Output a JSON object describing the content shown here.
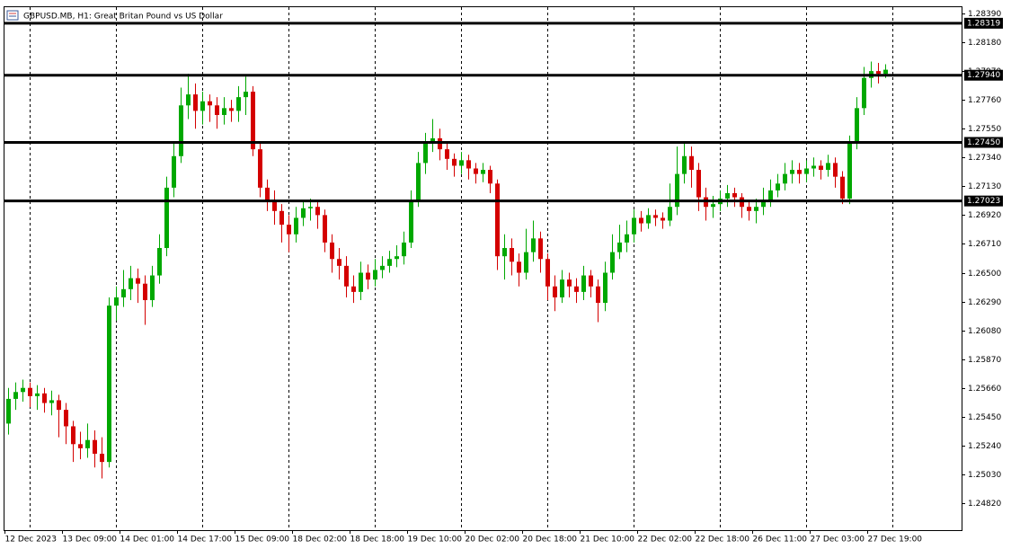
{
  "chart_data": {
    "type": "candlestick",
    "title": "GBPUSD.MB, H1:  Great Britan Pound vs US Dollar",
    "up_color": "#00a800",
    "down_color": "#d40000",
    "level_color": "#000000",
    "grid": true,
    "open": [
      1.254,
      1.2558,
      1.2563,
      1.2566,
      1.256,
      1.2562,
      1.2555,
      1.2557,
      1.255,
      1.2538,
      1.2525,
      1.2522,
      1.2528,
      1.2518,
      1.2512,
      1.2626,
      1.2632,
      1.2638,
      1.2646,
      1.2642,
      1.263,
      1.2648,
      1.2668,
      1.2712,
      1.2735,
      1.2772,
      1.278,
      1.2768,
      1.2775,
      1.2772,
      1.2765,
      1.277,
      1.2768,
      1.2778,
      1.2782,
      1.274,
      1.2712,
      1.2702,
      1.2695,
      1.2685,
      1.2678,
      1.269,
      1.2697,
      1.2698,
      1.2692,
      1.2672,
      1.266,
      1.2655,
      1.264,
      1.2636,
      1.265,
      1.2645,
      1.2652,
      1.2655,
      1.266,
      1.2662,
      1.2672,
      1.2702,
      1.273,
      1.2745,
      1.2748,
      1.274,
      1.2733,
      1.2728,
      1.2732,
      1.2726,
      1.2722,
      1.2725,
      1.2715,
      1.2662,
      1.2668,
      1.2658,
      1.265,
      1.2665,
      1.2675,
      1.266,
      1.264,
      1.2632,
      1.2645,
      1.264,
      1.2636,
      1.2648,
      1.264,
      1.2628,
      1.265,
      1.2665,
      1.2672,
      1.2678,
      1.269,
      1.2686,
      1.2692,
      1.269,
      1.2688,
      1.2698,
      1.2722,
      1.2735,
      1.2725,
      1.2705,
      1.2698,
      1.27,
      1.2704,
      1.2708,
      1.2705,
      1.2698,
      1.2695,
      1.2698,
      1.2702,
      1.271,
      1.2715,
      1.2722,
      1.2725,
      1.2722,
      1.2726,
      1.2728,
      1.2725,
      1.273,
      1.272,
      1.2704,
      1.2745,
      1.277,
      1.2792,
      1.2797,
      1.2795
    ],
    "high": [
      1.2566,
      1.257,
      1.2572,
      1.257,
      1.2568,
      1.2566,
      1.2564,
      1.2561,
      1.2555,
      1.2542,
      1.2534,
      1.254,
      1.2535,
      1.253,
      1.2632,
      1.264,
      1.2652,
      1.2655,
      1.2653,
      1.2648,
      1.2655,
      1.2678,
      1.272,
      1.2745,
      1.2785,
      1.2795,
      1.2788,
      1.2782,
      1.278,
      1.2778,
      1.2778,
      1.2776,
      1.2786,
      1.2793,
      1.2786,
      1.2745,
      1.2718,
      1.271,
      1.27,
      1.2692,
      1.2698,
      1.2703,
      1.2704,
      1.2702,
      1.2696,
      1.2678,
      1.2668,
      1.2662,
      1.2648,
      1.2658,
      1.2656,
      1.266,
      1.2662,
      1.2666,
      1.267,
      1.268,
      1.271,
      1.2738,
      1.2752,
      1.2762,
      1.2755,
      1.2745,
      1.2737,
      1.2738,
      1.2736,
      1.273,
      1.273,
      1.2728,
      1.2718,
      1.2678,
      1.2675,
      1.2664,
      1.2682,
      1.2688,
      1.268,
      1.2664,
      1.2648,
      1.2652,
      1.265,
      1.2646,
      1.2655,
      1.2652,
      1.2645,
      1.2658,
      1.2678,
      1.2685,
      1.2688,
      1.2696,
      1.2695,
      1.2697,
      1.2696,
      1.2694,
      1.2715,
      1.2742,
      1.2745,
      1.2742,
      1.273,
      1.2712,
      1.2706,
      1.271,
      1.2714,
      1.2712,
      1.2708,
      1.2702,
      1.2704,
      1.2712,
      1.2718,
      1.2722,
      1.273,
      1.2732,
      1.273,
      1.2732,
      1.2734,
      1.2732,
      1.2736,
      1.2734,
      1.2724,
      1.275,
      1.2778,
      1.28,
      1.2804,
      1.2803,
      1.2802
    ],
    "low": [
      1.2532,
      1.255,
      1.2556,
      1.2552,
      1.255,
      1.2548,
      1.2546,
      1.253,
      1.2525,
      1.2512,
      1.2514,
      1.2515,
      1.2508,
      1.25,
      1.2508,
      1.2615,
      1.2625,
      1.263,
      1.2628,
      1.2612,
      1.2625,
      1.2642,
      1.2662,
      1.2705,
      1.273,
      1.2762,
      1.2755,
      1.2758,
      1.276,
      1.2755,
      1.2758,
      1.276,
      1.276,
      1.2765,
      1.2735,
      1.2705,
      1.2695,
      1.2685,
      1.2672,
      1.2665,
      1.2672,
      1.2684,
      1.2688,
      1.2682,
      1.2665,
      1.265,
      1.2645,
      1.2632,
      1.2628,
      1.263,
      1.2638,
      1.264,
      1.2646,
      1.265,
      1.2654,
      1.2656,
      1.2668,
      1.2698,
      1.2722,
      1.2738,
      1.2732,
      1.2725,
      1.272,
      1.2722,
      1.2718,
      1.2715,
      1.2716,
      1.2708,
      1.2652,
      1.2645,
      1.2648,
      1.264,
      1.2645,
      1.2658,
      1.265,
      1.263,
      1.2622,
      1.2628,
      1.2632,
      1.2628,
      1.263,
      1.2632,
      1.2614,
      1.2622,
      1.2645,
      1.266,
      1.2665,
      1.2672,
      1.268,
      1.2682,
      1.2684,
      1.2682,
      1.2684,
      1.2692,
      1.2715,
      1.2712,
      1.2695,
      1.2688,
      1.269,
      1.2695,
      1.2698,
      1.2698,
      1.269,
      1.2688,
      1.2686,
      1.2692,
      1.2698,
      1.2705,
      1.271,
      1.2715,
      1.2715,
      1.2716,
      1.272,
      1.2718,
      1.272,
      1.2712,
      1.27,
      1.27,
      1.274,
      1.2765,
      1.2785,
      1.2788,
      1.2792
    ],
    "close": [
      1.2558,
      1.2563,
      1.2566,
      1.256,
      1.2562,
      1.2555,
      1.2557,
      1.255,
      1.2538,
      1.2525,
      1.2522,
      1.2528,
      1.2518,
      1.2512,
      1.2626,
      1.2632,
      1.2638,
      1.2646,
      1.2642,
      1.263,
      1.2648,
      1.2668,
      1.2712,
      1.2735,
      1.2772,
      1.278,
      1.2768,
      1.2775,
      1.2772,
      1.2765,
      1.277,
      1.2768,
      1.2778,
      1.2782,
      1.274,
      1.2712,
      1.2702,
      1.2695,
      1.2685,
      1.2678,
      1.269,
      1.2697,
      1.2698,
      1.2692,
      1.2672,
      1.266,
      1.2655,
      1.264,
      1.2636,
      1.265,
      1.2645,
      1.2652,
      1.2655,
      1.266,
      1.2662,
      1.2672,
      1.2702,
      1.273,
      1.2745,
      1.2748,
      1.274,
      1.2733,
      1.2728,
      1.2732,
      1.2726,
      1.2722,
      1.2725,
      1.2715,
      1.2662,
      1.2668,
      1.2658,
      1.265,
      1.2665,
      1.2675,
      1.266,
      1.264,
      1.2632,
      1.2645,
      1.264,
      1.2636,
      1.2648,
      1.264,
      1.2628,
      1.265,
      1.2665,
      1.2672,
      1.2678,
      1.269,
      1.2686,
      1.2692,
      1.269,
      1.2688,
      1.2698,
      1.2722,
      1.2735,
      1.2725,
      1.2705,
      1.2698,
      1.27,
      1.2704,
      1.2708,
      1.2705,
      1.2698,
      1.2695,
      1.2698,
      1.2702,
      1.271,
      1.2715,
      1.2722,
      1.2725,
      1.2722,
      1.2726,
      1.2728,
      1.2725,
      1.273,
      1.272,
      1.2704,
      1.2745,
      1.277,
      1.2792,
      1.2797,
      1.2795,
      1.2798
    ],
    "xlim": [
      -0.5,
      132.6
    ],
    "xticks": [
      {
        "value": 0,
        "label": "12 Dec 2023"
      },
      {
        "value": 8,
        "label": "13 Dec 09:00"
      },
      {
        "value": 16,
        "label": "14 Dec 01:00"
      },
      {
        "value": 24,
        "label": "14 Dec 17:00"
      },
      {
        "value": 32,
        "label": "15 Dec 09:00"
      },
      {
        "value": 40,
        "label": "18 Dec 02:00"
      },
      {
        "value": 48,
        "label": "18 Dec 18:00"
      },
      {
        "value": 56,
        "label": "19 Dec 10:00"
      },
      {
        "value": 64,
        "label": "20 Dec 02:00"
      },
      {
        "value": 72,
        "label": "20 Dec 18:00"
      },
      {
        "value": 80,
        "label": "21 Dec 10:00"
      },
      {
        "value": 88,
        "label": "22 Dec 02:00"
      },
      {
        "value": 96,
        "label": "22 Dec 18:00"
      },
      {
        "value": 104,
        "label": "26 Dec 11:00"
      },
      {
        "value": 112,
        "label": "27 Dec 03:00"
      },
      {
        "value": 120,
        "label": "27 Dec 19:00"
      }
    ],
    "ylim": [
      1.24623,
      1.28436
    ],
    "yticks": [
      {
        "value": 1.2839,
        "label": "1.28390"
      },
      {
        "value": 1.2818,
        "label": "1.28180"
      },
      {
        "value": 1.2797,
        "label": "1.27970"
      },
      {
        "value": 1.2776,
        "label": "1.27760"
      },
      {
        "value": 1.2755,
        "label": "1.27550"
      },
      {
        "value": 1.2734,
        "label": "1.27340"
      },
      {
        "value": 1.2713,
        "label": "1.27130"
      },
      {
        "value": 1.2692,
        "label": "1.26920"
      },
      {
        "value": 1.2671,
        "label": "1.26710"
      },
      {
        "value": 1.265,
        "label": "1.26500"
      },
      {
        "value": 1.2629,
        "label": "1.26290"
      },
      {
        "value": 1.2608,
        "label": "1.26080"
      },
      {
        "value": 1.2587,
        "label": "1.25870"
      },
      {
        "value": 1.2566,
        "label": "1.25660"
      },
      {
        "value": 1.2545,
        "label": "1.25450"
      },
      {
        "value": 1.2524,
        "label": "1.25240"
      },
      {
        "value": 1.2503,
        "label": "1.25030"
      },
      {
        "value": 1.2482,
        "label": "1.24820"
      }
    ],
    "levels": [
      1.28319,
      {
        "value": 1.2794,
        "label": "1.27940"
      },
      {
        "value": 1.2745,
        "label": "1.27450"
      },
      1.27023
    ]
  }
}
